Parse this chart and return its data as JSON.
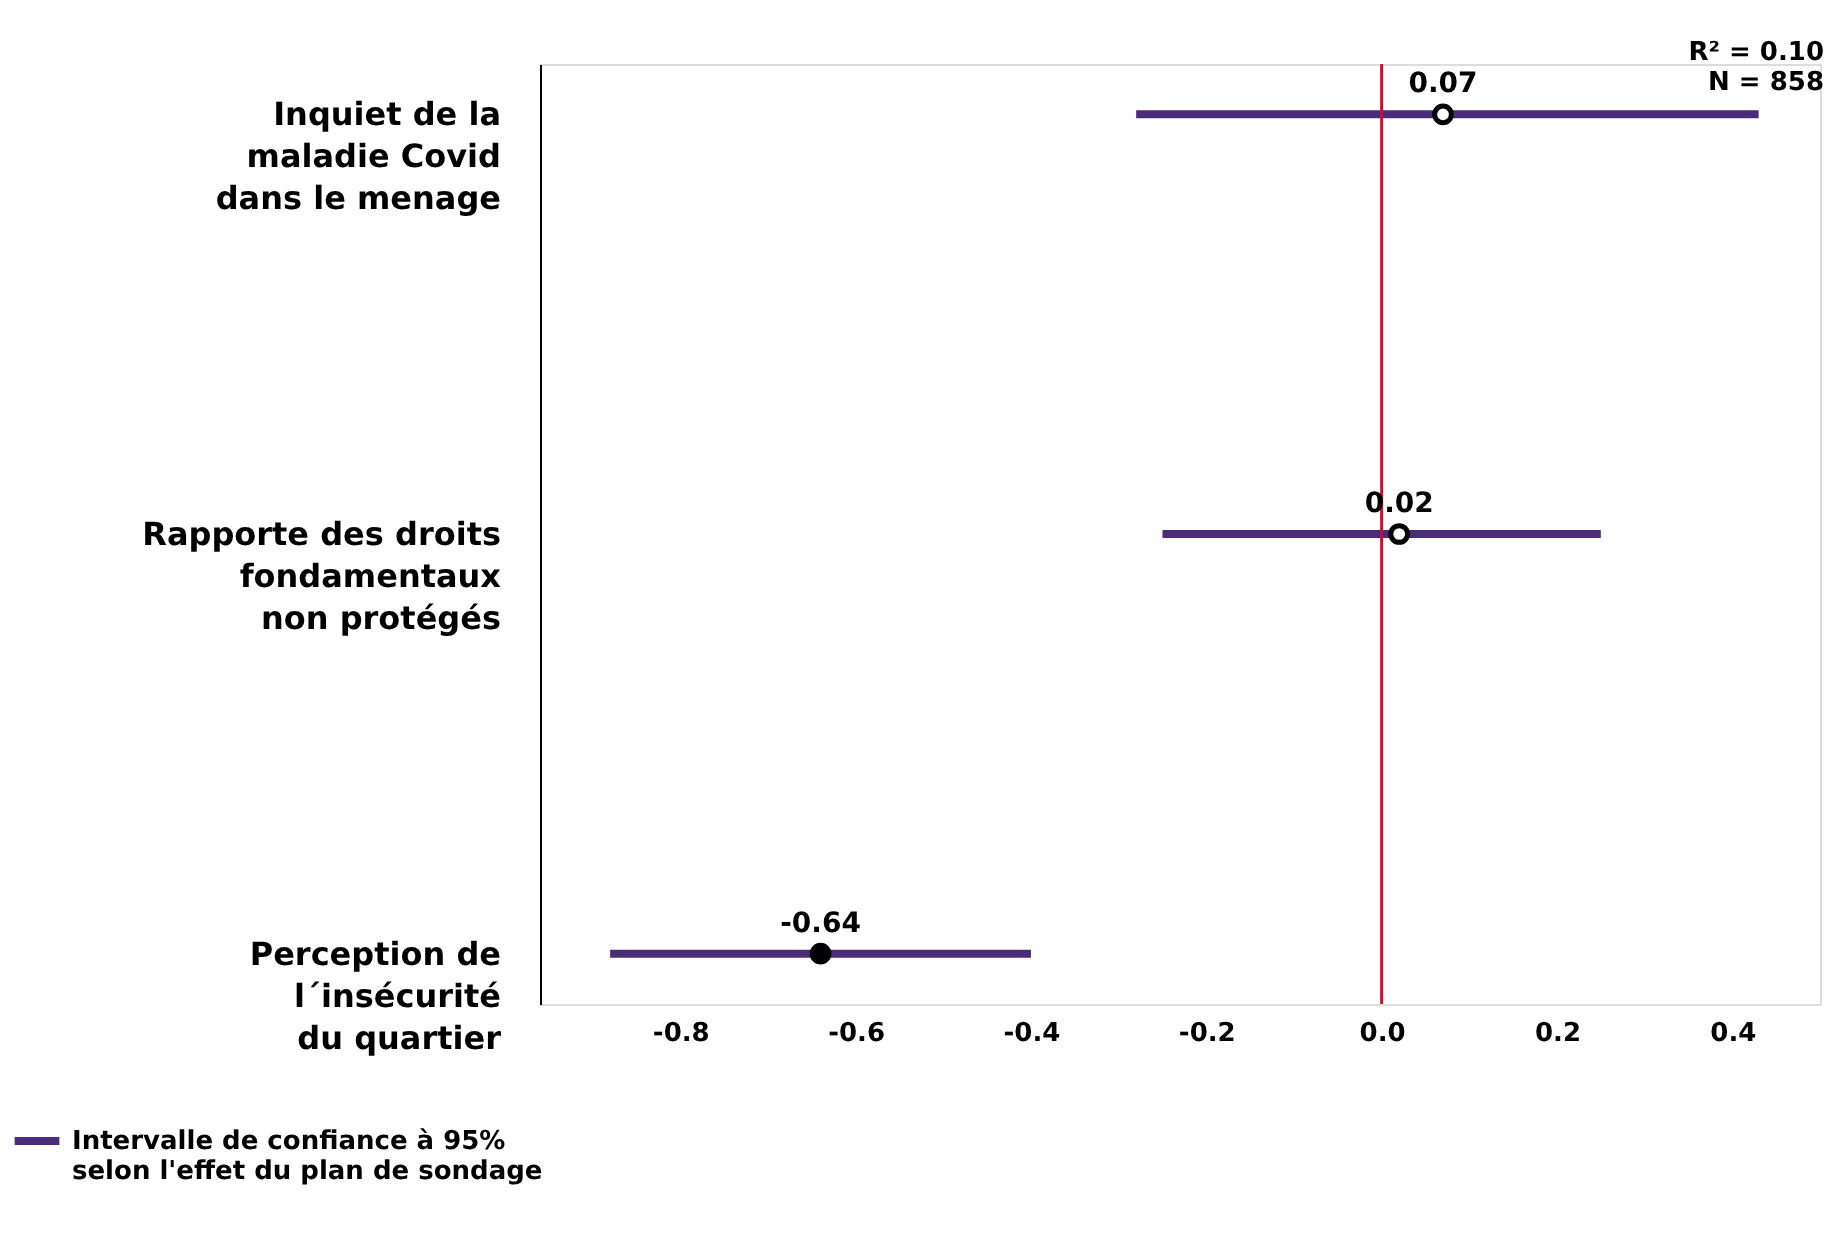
{
  "chart_data": {
    "type": "scatter",
    "orientation": "horizontal",
    "categories": [
      "Inquiet de la\nmaladie Covid\ndans le menage",
      "Rapporte des droits\nfondamentaux\nnon protégés",
      "Perception de\nl´insécurité\ndu quartier"
    ],
    "series": [
      {
        "name": "Intervalle de confiance à 95%\nselon l'effet du plan de sondage",
        "color": "#4b2c7a",
        "values": [
          0.07,
          0.02,
          -0.64
        ],
        "errors": [
          [
            -0.28,
            0.43
          ],
          [
            -0.25,
            0.25
          ],
          [
            -0.88,
            -0.4
          ]
        ],
        "colors": [
          "#ffffff",
          "#ffffff",
          "#000000"
        ]
      }
    ],
    "xlim": [
      -0.96,
      0.5
    ],
    "xticks": [
      {
        "value": -0.8,
        "label": "-0.8"
      },
      {
        "value": -0.6,
        "label": "-0.6"
      },
      {
        "value": -0.4,
        "label": "-0.4"
      },
      {
        "value": -0.2,
        "label": "-0.2"
      },
      {
        "value": 0,
        "label": "0.0"
      },
      {
        "value": 0.2,
        "label": "0.2"
      },
      {
        "value": 0.4,
        "label": "0.4"
      }
    ],
    "ref_lines": [
      {
        "axis": "x",
        "value": 0,
        "color": "#c8102e"
      }
    ],
    "data_labels": true,
    "marker": "circle",
    "grid": false,
    "legend": "bottom left",
    "annotations": [
      "R² = 0.10",
      "N =  858"
    ]
  }
}
